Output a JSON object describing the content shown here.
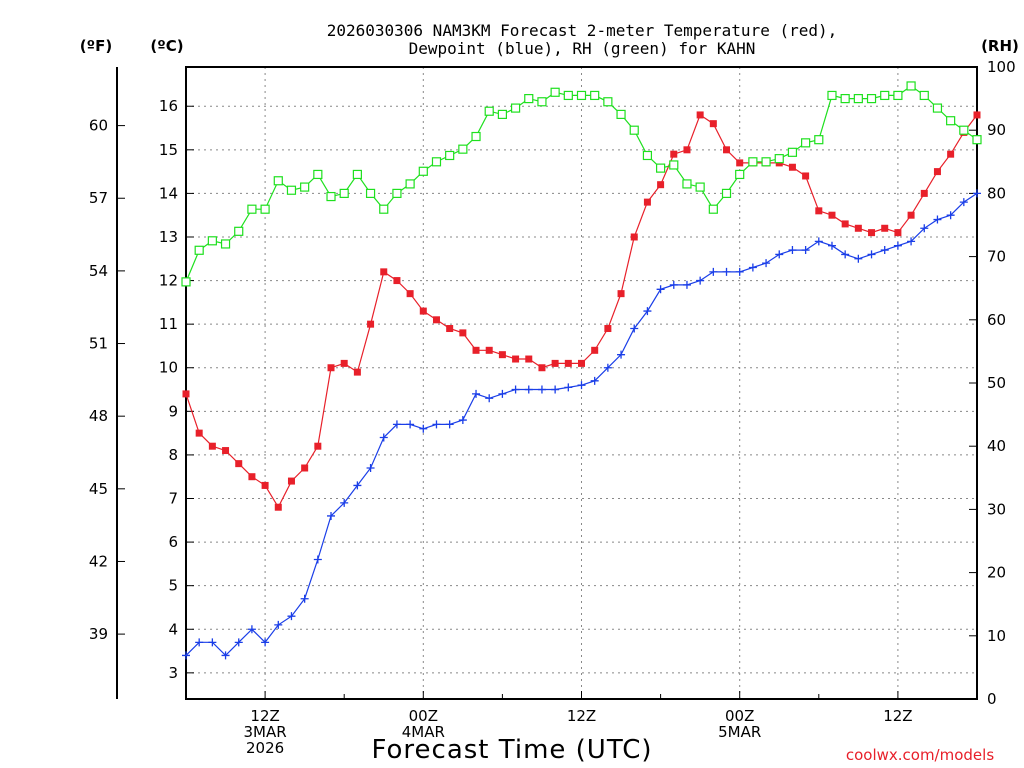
{
  "chart_data": {
    "type": "line",
    "title_line1": "2026030306 NAM3KM Forecast 2-meter Temperature (red),",
    "title_line2": "Dewpoint (blue), RH (green) for KAHN",
    "xlabel": "Forecast Time (UTC)",
    "watermark": "coolwx.com/models",
    "left_unit_f": "(ºF)",
    "left_unit_c": "(ºC)",
    "right_unit": "(RH)",
    "x_range_hours": [
      0,
      60
    ],
    "ylim_c": [
      2.4,
      16.9
    ],
    "ylim_rh": [
      0,
      100
    ],
    "x_ticks": [
      {
        "hour": 6,
        "line1": "12Z",
        "line2": "3MAR",
        "line3": "2026"
      },
      {
        "hour": 18,
        "line1": "00Z",
        "line2": "4MAR",
        "line3": ""
      },
      {
        "hour": 30,
        "line1": "12Z",
        "line2": "",
        "line3": ""
      },
      {
        "hour": 42,
        "line1": "00Z",
        "line2": "5MAR",
        "line3": ""
      },
      {
        "hour": 54,
        "line1": "12Z",
        "line2": "",
        "line3": ""
      }
    ],
    "c_ticks": [
      "3",
      "4",
      "5",
      "6",
      "7",
      "8",
      "9",
      "10",
      "11",
      "12",
      "13",
      "14",
      "15",
      "16"
    ],
    "f_ticks": [
      "39",
      "42",
      "45",
      "48",
      "51",
      "54",
      "57",
      "60"
    ],
    "rh_ticks": [
      "0",
      "10",
      "20",
      "30",
      "40",
      "50",
      "60",
      "70",
      "80",
      "90",
      "100"
    ],
    "series": [
      {
        "name": "Temperature",
        "units": "°C",
        "color": "#e8202a",
        "marker": "filled-square",
        "values": [
          9.4,
          8.5,
          8.2,
          8.1,
          7.8,
          7.5,
          7.3,
          6.8,
          7.4,
          7.7,
          8.2,
          10.0,
          10.1,
          9.9,
          11.0,
          12.2,
          12.0,
          11.7,
          11.3,
          11.1,
          10.9,
          10.8,
          10.4,
          10.4,
          10.3,
          10.2,
          10.2,
          10.0,
          10.1,
          10.1,
          10.1,
          10.4,
          10.9,
          11.7,
          13.0,
          13.8,
          14.2,
          14.9,
          15.0,
          15.8,
          15.6,
          15.0,
          14.7,
          14.7,
          14.7,
          14.7,
          14.6,
          14.4,
          13.6,
          13.5,
          13.3,
          13.2,
          13.1,
          13.2,
          13.1,
          13.5,
          14.0,
          14.5,
          14.9,
          15.4,
          15.8
        ]
      },
      {
        "name": "Dewpoint",
        "units": "°C",
        "color": "#1a3ee8",
        "marker": "plus",
        "values": [
          3.4,
          3.7,
          3.7,
          3.4,
          3.7,
          4.0,
          3.7,
          4.1,
          4.3,
          4.7,
          5.6,
          6.6,
          6.9,
          7.3,
          7.7,
          8.4,
          8.7,
          8.7,
          8.6,
          8.7,
          8.7,
          8.8,
          9.4,
          9.3,
          9.4,
          9.5,
          9.5,
          9.5,
          9.5,
          9.55,
          9.6,
          9.7,
          10.0,
          10.3,
          10.9,
          11.3,
          11.8,
          11.9,
          11.9,
          12.0,
          12.2,
          12.2,
          12.2,
          12.3,
          12.4,
          12.6,
          12.7,
          12.7,
          12.9,
          12.8,
          12.6,
          12.5,
          12.6,
          12.7,
          12.8,
          12.9,
          13.2,
          13.4,
          13.5,
          13.8,
          14.0
        ]
      },
      {
        "name": "RH",
        "units": "%",
        "color": "#1ee01e",
        "marker": "open-square",
        "values": [
          66,
          71,
          72.5,
          72,
          74,
          77.5,
          77.5,
          82,
          80.5,
          81,
          83,
          79.5,
          80,
          83,
          80,
          77.5,
          80,
          81.5,
          83.5,
          85,
          86,
          87,
          89,
          93,
          92.5,
          93.5,
          95,
          94.5,
          96,
          95.5,
          95.5,
          95.5,
          94.5,
          92.5,
          90,
          86,
          84,
          84.5,
          81.5,
          81,
          77.5,
          80,
          83,
          85,
          85,
          85.5,
          86.5,
          88,
          88.5,
          95.5,
          95,
          95,
          95,
          95.5,
          95.5,
          97,
          95.5,
          93.5,
          91.5,
          90,
          88.5
        ]
      }
    ]
  }
}
